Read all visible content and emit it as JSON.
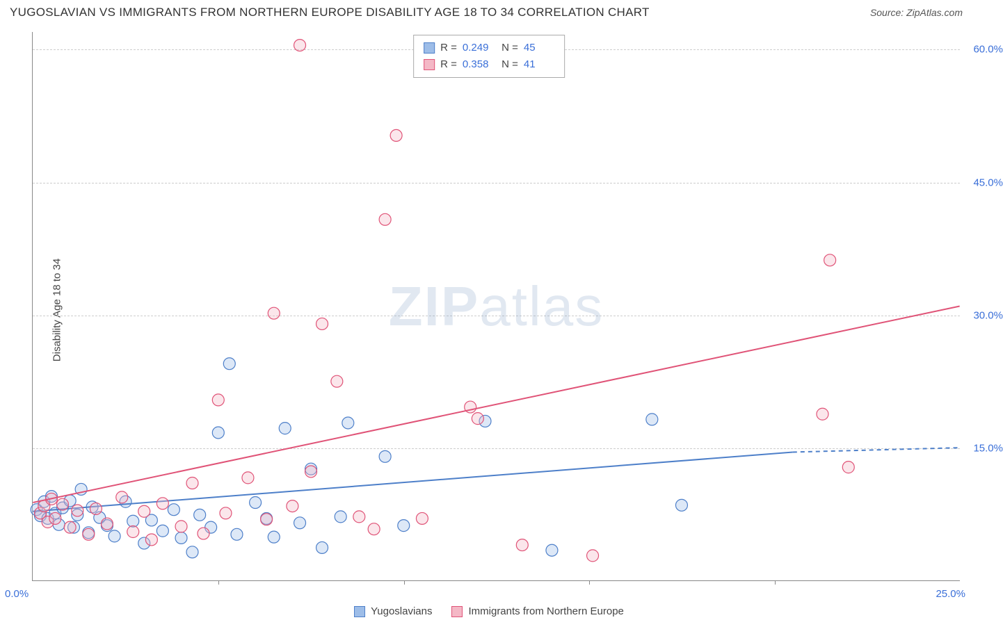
{
  "title": "YUGOSLAVIAN VS IMMIGRANTS FROM NORTHERN EUROPE DISABILITY AGE 18 TO 34 CORRELATION CHART",
  "source": "Source: ZipAtlas.com",
  "watermark": {
    "bold": "ZIP",
    "light": "atlas"
  },
  "y_axis": {
    "title": "Disability Age 18 to 34",
    "min": 0,
    "max": 62,
    "ticks": [
      15,
      30,
      45,
      60
    ],
    "tick_labels": [
      "15.0%",
      "30.0%",
      "45.0%",
      "60.0%"
    ]
  },
  "x_axis": {
    "min": 0,
    "max": 25,
    "tick_positions": [
      5,
      10,
      15,
      20
    ],
    "left_label": "0.0%",
    "right_label": "25.0%"
  },
  "series": [
    {
      "name": "Yugoslavians",
      "fill": "#9dbde8",
      "stroke": "#4d7fc9",
      "r_value": "0.249",
      "n_value": "45",
      "trend": {
        "x1": 0,
        "y1": 7.8,
        "x2": 20.5,
        "y2": 14.5,
        "extend_x2": 25,
        "extend_y2": 15
      },
      "points": [
        [
          0.1,
          8.0
        ],
        [
          0.2,
          7.3
        ],
        [
          0.3,
          8.9
        ],
        [
          0.4,
          7.0
        ],
        [
          0.5,
          9.5
        ],
        [
          0.6,
          7.6
        ],
        [
          0.7,
          6.3
        ],
        [
          0.8,
          8.2
        ],
        [
          1.0,
          9.0
        ],
        [
          1.1,
          6.0
        ],
        [
          1.2,
          7.4
        ],
        [
          1.3,
          10.3
        ],
        [
          1.5,
          5.4
        ],
        [
          1.6,
          8.3
        ],
        [
          1.8,
          7.1
        ],
        [
          2.0,
          6.2
        ],
        [
          2.2,
          5.0
        ],
        [
          2.5,
          8.9
        ],
        [
          2.7,
          6.7
        ],
        [
          3.0,
          4.2
        ],
        [
          3.2,
          6.8
        ],
        [
          3.5,
          5.6
        ],
        [
          3.8,
          8.0
        ],
        [
          4.0,
          4.8
        ],
        [
          4.3,
          3.2
        ],
        [
          4.5,
          7.4
        ],
        [
          4.8,
          6.0
        ],
        [
          5.0,
          16.7
        ],
        [
          5.3,
          24.5
        ],
        [
          5.5,
          5.2
        ],
        [
          6.0,
          8.8
        ],
        [
          6.3,
          7.0
        ],
        [
          6.5,
          4.9
        ],
        [
          6.8,
          17.2
        ],
        [
          7.2,
          6.5
        ],
        [
          7.5,
          12.6
        ],
        [
          7.8,
          3.7
        ],
        [
          8.3,
          7.2
        ],
        [
          8.5,
          17.8
        ],
        [
          9.5,
          14.0
        ],
        [
          10.0,
          6.2
        ],
        [
          12.2,
          18.0
        ],
        [
          14.0,
          3.4
        ],
        [
          16.7,
          18.2
        ],
        [
          17.5,
          8.5
        ]
      ]
    },
    {
      "name": "Immigrants from Northern Europe",
      "fill": "#f4b8c6",
      "stroke": "#e05377",
      "r_value": "0.358",
      "n_value": "41",
      "trend": {
        "x1": 0,
        "y1": 8.8,
        "x2": 25,
        "y2": 31,
        "extend_x2": 25,
        "extend_y2": 31
      },
      "points": [
        [
          0.2,
          7.6
        ],
        [
          0.3,
          8.4
        ],
        [
          0.4,
          6.6
        ],
        [
          0.5,
          9.2
        ],
        [
          0.6,
          7.0
        ],
        [
          0.8,
          8.6
        ],
        [
          1.0,
          6.0
        ],
        [
          1.2,
          7.9
        ],
        [
          1.5,
          5.2
        ],
        [
          1.7,
          8.1
        ],
        [
          2.0,
          6.4
        ],
        [
          2.4,
          9.4
        ],
        [
          2.7,
          5.5
        ],
        [
          3.0,
          7.8
        ],
        [
          3.2,
          4.6
        ],
        [
          3.5,
          8.7
        ],
        [
          4.0,
          6.1
        ],
        [
          4.3,
          11.0
        ],
        [
          4.6,
          5.3
        ],
        [
          5.0,
          20.4
        ],
        [
          5.2,
          7.6
        ],
        [
          5.8,
          11.6
        ],
        [
          6.3,
          6.9
        ],
        [
          6.5,
          30.2
        ],
        [
          7.0,
          8.4
        ],
        [
          7.2,
          60.5
        ],
        [
          7.5,
          12.3
        ],
        [
          7.8,
          29.0
        ],
        [
          8.2,
          22.5
        ],
        [
          8.8,
          7.2
        ],
        [
          9.2,
          5.8
        ],
        [
          9.5,
          40.8
        ],
        [
          9.8,
          50.3
        ],
        [
          10.5,
          7.0
        ],
        [
          11.8,
          19.6
        ],
        [
          12.0,
          18.3
        ],
        [
          13.2,
          4.0
        ],
        [
          15.1,
          2.8
        ],
        [
          21.3,
          18.8
        ],
        [
          21.5,
          36.2
        ],
        [
          22.0,
          12.8
        ]
      ]
    }
  ],
  "legend_labels": [
    "Yugoslavians",
    "Immigrants from Northern Europe"
  ],
  "chart_style": {
    "background_color": "#ffffff",
    "grid_color": "#cccccc",
    "axis_color": "#888888",
    "axis_text_color": "#3a6fd8",
    "marker_radius": 8.5,
    "marker_fill_opacity": 0.35,
    "trend_line_width": 2,
    "title_text_color": "#333333"
  }
}
